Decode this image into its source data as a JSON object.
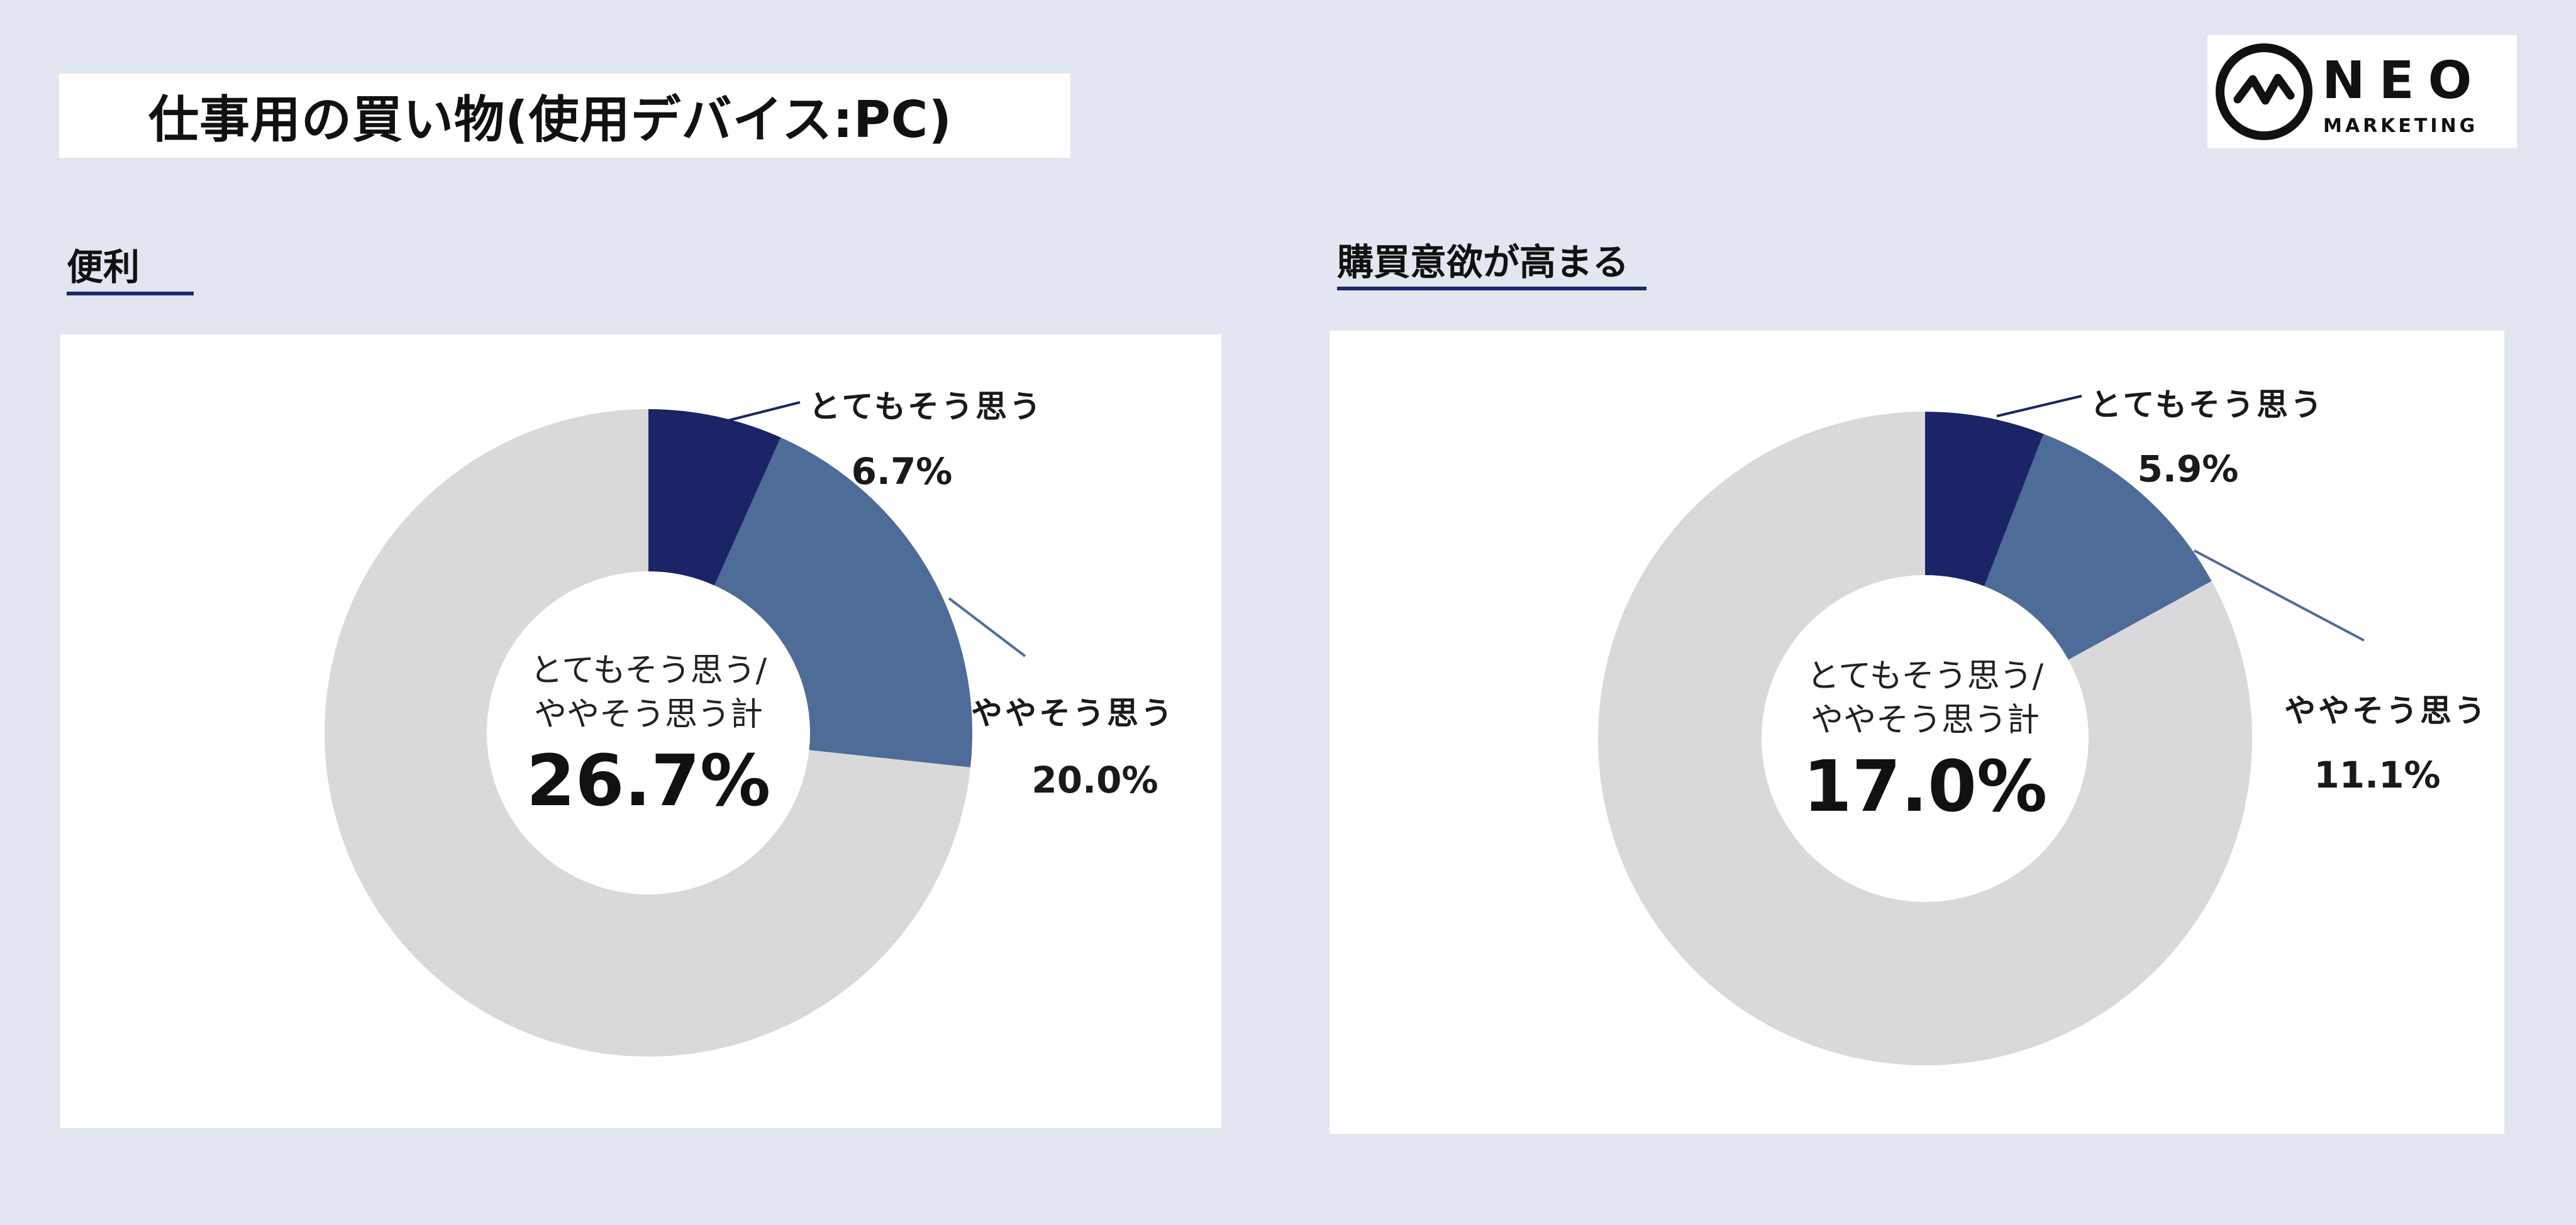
{
  "header": {
    "title": "仕事用の買い物(使用デバイス:PC)"
  },
  "logo": {
    "icon": "pulse-circle-icon",
    "word": "NEO",
    "sub": "MARKETING"
  },
  "colors": {
    "background": "#e1e6f0",
    "very_agree": "#1a2466",
    "somewhat_agree": "#4e6c98",
    "rest": "#d9d9db",
    "underline": "#1a2a6c"
  },
  "chart_data": [
    {
      "type": "pie",
      "title": "便利",
      "center_label_lines": [
        "とてもそう思う/",
        "ややそう思う計"
      ],
      "center_value": "26.7%",
      "slices": [
        {
          "name": "とてもそう思う",
          "value": 6.7,
          "label": "6.7%"
        },
        {
          "name": "ややそう思う",
          "value": 20.0,
          "label": "20.0%"
        },
        {
          "name": "",
          "value": 73.3,
          "label": ""
        }
      ]
    },
    {
      "type": "pie",
      "title": "購買意欲が高まる",
      "center_label_lines": [
        "とてもそう思う/",
        "ややそう思う計"
      ],
      "center_value": "17.0%",
      "slices": [
        {
          "name": "とてもそう思う",
          "value": 5.9,
          "label": "5.9%"
        },
        {
          "name": "ややそう思う",
          "value": 11.1,
          "label": "11.1%"
        },
        {
          "name": "",
          "value": 83.0,
          "label": ""
        }
      ]
    }
  ]
}
